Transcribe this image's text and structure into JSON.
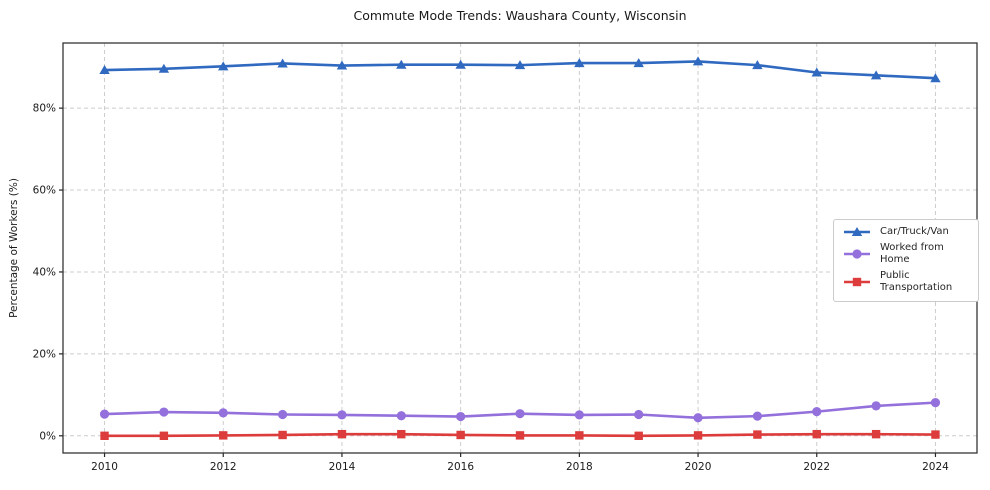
{
  "chart_data": {
    "type": "line",
    "title": "Commute Mode Trends: Waushara County, Wisconsin",
    "xlabel": "",
    "ylabel": "Percentage of Workers (%)",
    "x": [
      2010,
      2011,
      2012,
      2013,
      2014,
      2015,
      2016,
      2017,
      2018,
      2019,
      2020,
      2021,
      2022,
      2023,
      2024
    ],
    "x_tick_values": [
      2010,
      2012,
      2014,
      2016,
      2018,
      2020,
      2022,
      2024
    ],
    "x_tick_labels": [
      "2010",
      "2012",
      "2014",
      "2016",
      "2018",
      "2020",
      "2022",
      "2024"
    ],
    "y_tick_values": [
      0,
      20,
      40,
      60,
      80
    ],
    "y_tick_labels": [
      "0%",
      "20%",
      "40%",
      "60%",
      "80%"
    ],
    "xlim": [
      2009.3,
      2024.7
    ],
    "ylim": [
      -4.2,
      95.9
    ],
    "grid": true,
    "grid_style": "dashed",
    "grid_color": "#cccccc",
    "axis_color": "#262626",
    "legend_position": "center-right",
    "series": [
      {
        "name": "Car/Truck/Van",
        "color": "#3069c0",
        "marker": "triangle",
        "values": [
          89.3,
          89.6,
          90.2,
          90.9,
          90.4,
          90.6,
          90.6,
          90.5,
          91.0,
          91.0,
          91.4,
          90.5,
          88.7,
          88.0,
          87.3
        ]
      },
      {
        "name": "Worked from Home",
        "color": "#9370db",
        "marker": "circle",
        "values": [
          5.3,
          5.8,
          5.6,
          5.2,
          5.1,
          4.9,
          4.7,
          5.4,
          5.1,
          5.2,
          4.4,
          4.8,
          5.9,
          7.3,
          8.1
        ]
      },
      {
        "name": "Public Transportation",
        "color": "#dd3c3c",
        "marker": "square",
        "values": [
          0.0,
          0.0,
          0.1,
          0.2,
          0.4,
          0.4,
          0.2,
          0.1,
          0.1,
          0.0,
          0.1,
          0.3,
          0.4,
          0.4,
          0.3
        ]
      }
    ]
  }
}
